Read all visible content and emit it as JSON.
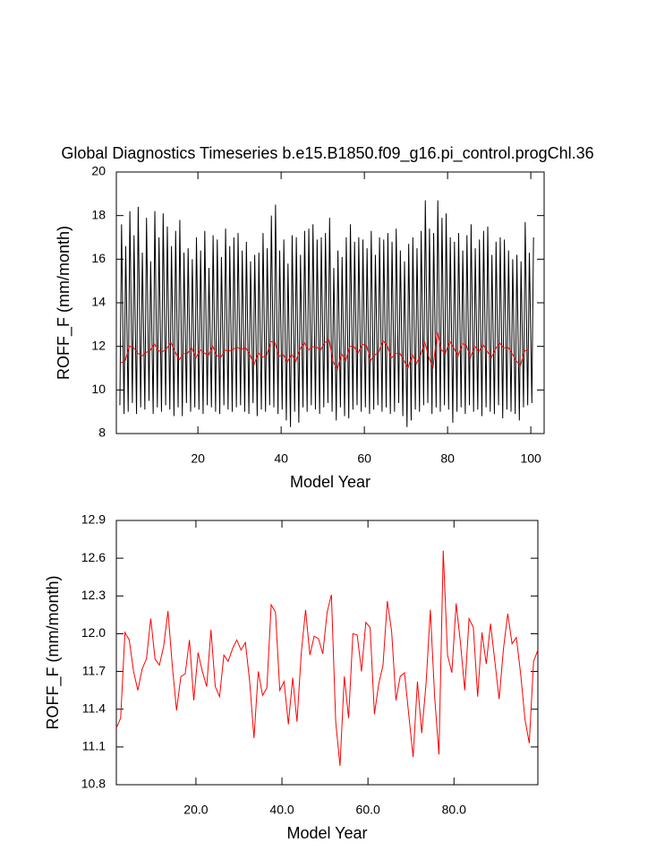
{
  "chart_data": [
    {
      "type": "line",
      "title": "Global Diagnostics Timeseries b.e15.B1850.f09_g16.pi_control.progChl.36",
      "x_label": "Model Year",
      "y_label": "ROFF_F (mm/month)",
      "xlim": [
        0.4,
        103.2
      ],
      "xticks": [
        20,
        40,
        60,
        80,
        100
      ],
      "ylim": [
        8,
        20
      ],
      "yticks": [
        8,
        10,
        12,
        14,
        16,
        18,
        20
      ],
      "series": [
        {
          "color": "#000000",
          "x": [
            1.25,
            1.65,
            2.25,
            2.65,
            3.25,
            3.65,
            4.25,
            4.65,
            5.25,
            5.65,
            6.25,
            6.65,
            7.25,
            7.65,
            8.25,
            8.65,
            9.25,
            9.65,
            10.25,
            10.65,
            11.25,
            11.65,
            12.25,
            12.65,
            13.25,
            13.65,
            14.25,
            14.65,
            15.25,
            15.65,
            16.25,
            16.65,
            17.25,
            17.65,
            18.25,
            18.65,
            19.25,
            19.65,
            20.25,
            20.65,
            21.25,
            21.65,
            22.25,
            22.65,
            23.25,
            23.65,
            24.25,
            24.65,
            25.25,
            25.65,
            26.25,
            26.65,
            27.25,
            27.65,
            28.25,
            28.65,
            29.25,
            29.65,
            30.25,
            30.65,
            31.25,
            31.65,
            32.25,
            32.65,
            33.25,
            33.65,
            34.25,
            34.65,
            35.25,
            35.65,
            36.25,
            36.65,
            37.25,
            37.65,
            38.25,
            38.65,
            39.25,
            39.65,
            40.25,
            40.65,
            41.25,
            41.65,
            42.25,
            42.65,
            43.25,
            43.65,
            44.25,
            44.65,
            45.25,
            45.65,
            46.25,
            46.65,
            47.25,
            47.65,
            48.25,
            48.65,
            49.25,
            49.65,
            50.25,
            50.65,
            51.25,
            51.65,
            52.25,
            52.65,
            53.25,
            53.65,
            54.25,
            54.65,
            55.25,
            55.65,
            56.25,
            56.65,
            57.25,
            57.65,
            58.25,
            58.65,
            59.25,
            59.65,
            60.25,
            60.65,
            61.25,
            61.65,
            62.25,
            62.65,
            63.25,
            63.65,
            64.25,
            64.65,
            65.25,
            65.65,
            66.25,
            66.65,
            67.25,
            67.65,
            68.25,
            68.65,
            69.25,
            69.65,
            70.25,
            70.65,
            71.25,
            71.65,
            72.25,
            72.65,
            73.25,
            73.65,
            74.25,
            74.65,
            75.25,
            75.65,
            76.25,
            76.65,
            77.25,
            77.65,
            78.25,
            78.65,
            79.25,
            79.65,
            80.25,
            80.65,
            81.25,
            81.65,
            82.25,
            82.65,
            83.25,
            83.65,
            84.25,
            84.65,
            85.25,
            85.65,
            86.25,
            86.65,
            87.25,
            87.65,
            88.25,
            88.65,
            89.25,
            89.65,
            90.25,
            90.65,
            91.25,
            91.65,
            92.25,
            92.65,
            93.25,
            93.65,
            94.25,
            94.65,
            95.25,
            95.65,
            96.25,
            96.65,
            97.25,
            97.65,
            98.25,
            98.65,
            99.25,
            99.65,
            100.25,
            100.65
          ],
          "values": [
            9.3,
            17.6,
            8.9,
            16.6,
            9.0,
            18.2,
            9.4,
            17.1,
            8.9,
            18.4,
            9.2,
            16.3,
            9.1,
            17.9,
            9.5,
            15.9,
            8.9,
            18.2,
            9.2,
            17.0,
            9.0,
            18.1,
            9.3,
            17.5,
            9.1,
            16.6,
            8.8,
            17.3,
            9.2,
            17.8,
            8.8,
            16.3,
            9.4,
            16.5,
            9.0,
            16.0,
            9.2,
            17.0,
            9.1,
            16.4,
            8.9,
            17.3,
            9.3,
            15.6,
            9.2,
            17.1,
            9.0,
            16.9,
            8.9,
            16.1,
            9.3,
            17.4,
            9.1,
            16.6,
            9.0,
            17.0,
            9.2,
            17.2,
            9.3,
            16.4,
            9.0,
            16.8,
            8.9,
            15.9,
            9.4,
            16.2,
            8.8,
            16.3,
            9.1,
            17.2,
            9.0,
            16.5,
            9.3,
            18.0,
            9.2,
            18.5,
            8.9,
            16.4,
            9.1,
            16.9,
            8.6,
            15.8,
            8.3,
            17.1,
            9.0,
            17.0,
            8.5,
            16.2,
            9.2,
            17.3,
            9.0,
            17.4,
            9.3,
            17.6,
            9.1,
            16.9,
            8.9,
            17.0,
            9.2,
            17.2,
            9.4,
            17.9,
            9.0,
            15.6,
            8.6,
            16.4,
            9.2,
            16.1,
            8.8,
            17.0,
            8.7,
            17.6,
            9.1,
            16.8,
            9.3,
            17.0,
            9.0,
            16.9,
            9.2,
            16.5,
            8.9,
            17.3,
            9.1,
            16.2,
            9.3,
            17.0,
            9.0,
            16.9,
            9.2,
            17.2,
            8.9,
            16.8,
            9.0,
            17.4,
            9.4,
            16.4,
            8.8,
            15.9,
            8.3,
            16.7,
            8.6,
            17.0,
            9.1,
            16.5,
            9.0,
            17.3,
            9.3,
            18.7,
            9.4,
            17.4,
            8.9,
            17.2,
            9.2,
            18.7,
            9.0,
            17.9,
            9.3,
            18.1,
            9.1,
            17.0,
            8.5,
            16.8,
            9.0,
            17.2,
            9.2,
            16.4,
            8.9,
            17.1,
            9.3,
            17.6,
            9.0,
            16.5,
            9.1,
            16.9,
            8.8,
            17.3,
            9.2,
            17.5,
            9.0,
            16.2,
            8.9,
            16.8,
            9.3,
            17.0,
            8.7,
            16.9,
            9.1,
            16.4,
            9.0,
            16.0,
            8.9,
            16.2,
            8.6,
            15.9,
            9.2,
            17.7,
            9.3,
            16.3,
            9.4,
            17.0
          ]
        },
        {
          "color": "#ff0000",
          "x": [
            1.5,
            2.5,
            3.5,
            4.5,
            5.5,
            6.5,
            7.5,
            8.5,
            9.5,
            10.5,
            11.5,
            12.5,
            13.5,
            14.5,
            15.5,
            16.5,
            17.5,
            18.5,
            19.5,
            20.5,
            21.5,
            22.5,
            23.5,
            24.5,
            25.5,
            26.5,
            27.5,
            28.5,
            29.5,
            30.5,
            31.5,
            32.5,
            33.5,
            34.5,
            35.5,
            36.5,
            37.5,
            38.5,
            39.5,
            40.5,
            41.5,
            42.5,
            43.5,
            44.5,
            45.5,
            46.5,
            47.5,
            48.5,
            49.5,
            50.5,
            51.5,
            52.5,
            53.5,
            54.5,
            55.5,
            56.5,
            57.5,
            58.5,
            59.5,
            60.5,
            61.5,
            62.5,
            63.5,
            64.5,
            65.5,
            66.5,
            67.5,
            68.5,
            69.5,
            70.5,
            71.5,
            72.5,
            73.5,
            74.5,
            75.5,
            76.5,
            77.5,
            78.5,
            79.5,
            80.5,
            81.5,
            82.5,
            83.5,
            84.5,
            85.5,
            86.5,
            87.5,
            88.5,
            89.5,
            90.5,
            91.5,
            92.5,
            93.5,
            94.5,
            95.5,
            96.5,
            97.5,
            98.5,
            99.5
          ],
          "values": [
            11.25,
            11.33,
            12.01,
            11.95,
            11.7,
            11.55,
            11.72,
            11.8,
            12.12,
            11.8,
            11.75,
            11.9,
            12.18,
            11.75,
            11.39,
            11.66,
            11.68,
            11.95,
            11.47,
            11.85,
            11.7,
            11.58,
            12.03,
            11.58,
            11.5,
            11.83,
            11.78,
            11.88,
            11.95,
            11.87,
            11.93,
            11.62,
            11.17,
            11.7,
            11.51,
            11.57,
            12.23,
            12.17,
            11.55,
            11.62,
            11.28,
            11.65,
            11.3,
            11.85,
            12.19,
            11.83,
            11.98,
            11.96,
            11.84,
            12.17,
            12.31,
            11.3,
            10.95,
            11.66,
            11.33,
            12.0,
            11.99,
            11.7,
            12.09,
            12.05,
            11.36,
            11.6,
            11.75,
            12.26,
            12.02,
            11.47,
            11.66,
            11.69,
            11.35,
            11.02,
            11.62,
            11.21,
            11.6,
            12.19,
            11.5,
            11.04,
            12.66,
            11.83,
            11.69,
            12.24,
            11.93,
            11.55,
            12.12,
            12.05,
            11.5,
            12.01,
            11.76,
            12.08,
            11.78,
            11.48,
            11.88,
            12.16,
            11.92,
            11.97,
            11.68,
            11.32,
            11.13,
            11.78,
            11.87
          ]
        }
      ]
    },
    {
      "type": "line",
      "x_label": "Model Year",
      "y_label": "ROFF_F (mm/month)",
      "xlim": [
        1.5,
        99.5
      ],
      "xticks": [
        {
          "value": 20,
          "label": "20.0"
        },
        {
          "value": 40,
          "label": "40.0"
        },
        {
          "value": 60,
          "label": "60.0"
        },
        {
          "value": 80,
          "label": "80.0"
        }
      ],
      "ylim": [
        10.8,
        12.9
      ],
      "yticks": [
        10.8,
        11.1,
        11.4,
        11.7,
        {
          "value": 12,
          "label": "12.0"
        },
        12.3,
        12.6,
        12.9
      ],
      "series": [
        {
          "color": "#ff0000",
          "x": [
            1.5,
            2.5,
            3.5,
            4.5,
            5.5,
            6.5,
            7.5,
            8.5,
            9.5,
            10.5,
            11.5,
            12.5,
            13.5,
            14.5,
            15.5,
            16.5,
            17.5,
            18.5,
            19.5,
            20.5,
            21.5,
            22.5,
            23.5,
            24.5,
            25.5,
            26.5,
            27.5,
            28.5,
            29.5,
            30.5,
            31.5,
            32.5,
            33.5,
            34.5,
            35.5,
            36.5,
            37.5,
            38.5,
            39.5,
            40.5,
            41.5,
            42.5,
            43.5,
            44.5,
            45.5,
            46.5,
            47.5,
            48.5,
            49.5,
            50.5,
            51.5,
            52.5,
            53.5,
            54.5,
            55.5,
            56.5,
            57.5,
            58.5,
            59.5,
            60.5,
            61.5,
            62.5,
            63.5,
            64.5,
            65.5,
            66.5,
            67.5,
            68.5,
            69.5,
            70.5,
            71.5,
            72.5,
            73.5,
            74.5,
            75.5,
            76.5,
            77.5,
            78.5,
            79.5,
            80.5,
            81.5,
            82.5,
            83.5,
            84.5,
            85.5,
            86.5,
            87.5,
            88.5,
            89.5,
            90.5,
            91.5,
            92.5,
            93.5,
            94.5,
            95.5,
            96.5,
            97.5,
            98.5,
            99.5
          ],
          "values": [
            11.25,
            11.33,
            12.01,
            11.95,
            11.7,
            11.55,
            11.72,
            11.8,
            12.12,
            11.8,
            11.75,
            11.9,
            12.18,
            11.75,
            11.39,
            11.66,
            11.68,
            11.95,
            11.47,
            11.85,
            11.7,
            11.58,
            12.03,
            11.58,
            11.5,
            11.83,
            11.78,
            11.88,
            11.95,
            11.87,
            11.93,
            11.62,
            11.17,
            11.7,
            11.51,
            11.57,
            12.23,
            12.17,
            11.55,
            11.62,
            11.28,
            11.65,
            11.3,
            11.85,
            12.19,
            11.83,
            11.98,
            11.96,
            11.84,
            12.17,
            12.31,
            11.3,
            10.95,
            11.66,
            11.33,
            12.0,
            11.99,
            11.7,
            12.09,
            12.05,
            11.36,
            11.6,
            11.75,
            12.26,
            12.02,
            11.47,
            11.66,
            11.69,
            11.35,
            11.02,
            11.62,
            11.21,
            11.6,
            12.19,
            11.5,
            11.04,
            12.66,
            11.83,
            11.69,
            12.24,
            11.93,
            11.55,
            12.12,
            12.05,
            11.5,
            12.01,
            11.76,
            12.08,
            11.78,
            11.48,
            11.88,
            12.16,
            11.92,
            11.97,
            11.68,
            11.32,
            11.13,
            11.78,
            11.87
          ]
        }
      ]
    }
  ]
}
